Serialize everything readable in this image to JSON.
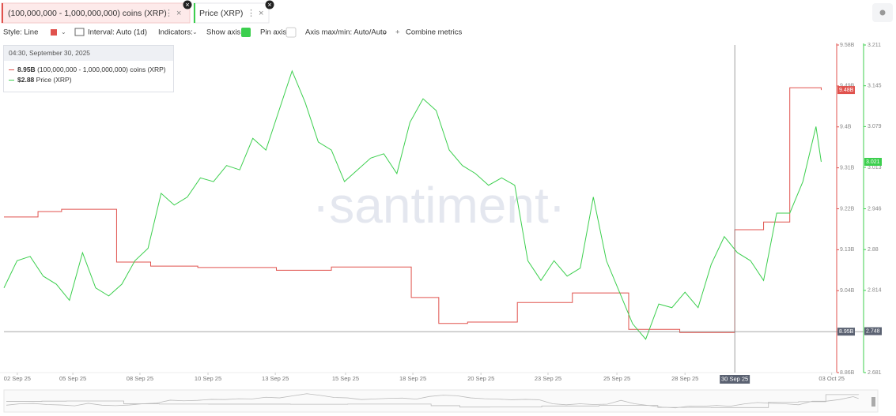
{
  "chart_data": {
    "type": "line",
    "tabs": [
      "(100,000,000 - 1,000,000,000) coins (XRP)",
      "Price (XRP)"
    ],
    "toolbar": {
      "style": "Style: Line",
      "interval": "Interval: Auto (1d)",
      "indicators": "Indicators:",
      "show_axis": "Show axis",
      "pin_axis": "Pin axis",
      "axis_maxmin": "Axis max/min: Auto/Auto",
      "combine": "Combine metrics"
    },
    "watermark": "·santiment·",
    "tooltip": {
      "time": "04:30, September 30, 2025",
      "rows": [
        {
          "value": "8.95B",
          "name": "(100,000,000 - 1,000,000,000) coins (XRP)"
        },
        {
          "value": "$2.88",
          "name": "Price (XRP)"
        }
      ]
    },
    "xlim": [
      1.5,
      33.2
    ],
    "xticks": [
      {
        "value": 2.01,
        "label": "02 Sep 25"
      },
      {
        "value": 4.13,
        "label": "05 Sep 25"
      },
      {
        "value": 6.69,
        "label": "08 Sep 25"
      },
      {
        "value": 9.29,
        "label": "10 Sep 25"
      },
      {
        "value": 11.86,
        "label": "13 Sep 25"
      },
      {
        "value": 14.54,
        "label": "15 Sep 25"
      },
      {
        "value": 17.11,
        "label": "18 Sep 25"
      },
      {
        "value": 19.71,
        "label": "20 Sep 25"
      },
      {
        "value": 22.27,
        "label": "23 Sep 25"
      },
      {
        "value": 24.9,
        "label": "25 Sep 25"
      },
      {
        "value": 27.5,
        "label": "28 Sep 25"
      },
      {
        "value": 33.1,
        "label": "03 Oct 25"
      }
    ],
    "ylim": [
      8.86,
      9.58
    ],
    "yticks": [
      {
        "value": 9.58,
        "label": "9.58B"
      },
      {
        "value": 9.49,
        "label": "9.49B"
      },
      {
        "value": 9.4,
        "label": "9.4B"
      },
      {
        "value": 9.31,
        "label": "9.31B"
      },
      {
        "value": 9.22,
        "label": "9.22B"
      },
      {
        "value": 9.13,
        "label": "9.13B"
      },
      {
        "value": 9.04,
        "label": "9.04B"
      },
      {
        "value": 8.86,
        "label": "8.86B"
      }
    ],
    "y2lim": [
      2.681,
      3.211
    ],
    "y2ticks": [
      3.211,
      3.145,
      3.079,
      3.013,
      2.946,
      2.88,
      2.814,
      2.681
    ],
    "grid": false,
    "crosshair": {
      "x": {
        "value": 29.4,
        "label": "30 Sep 25"
      },
      "y": {
        "value": 8.95,
        "label": "8.95B"
      },
      "y2": 2.748
    },
    "series": [
      {
        "name": "(100,000,000 - 1,000,000,000) coins (XRP)",
        "color": "#e0524d",
        "axis": "y",
        "step": true,
        "last_label": "9.48B",
        "x": [
          1.5,
          2.8,
          3.7,
          5.8,
          7.1,
          8.9,
          11.9,
          14.0,
          17.05,
          18.1,
          19.2,
          21.1,
          23.2,
          25.35,
          27.3,
          29.4,
          30.5,
          31.5,
          32.7
        ],
        "values": [
          9.202,
          9.214,
          9.219,
          9.103,
          9.094,
          9.091,
          9.085,
          9.092,
          9.025,
          8.968,
          8.971,
          9.014,
          9.035,
          8.955,
          8.948,
          9.174,
          9.191,
          9.486,
          9.481
        ]
      },
      {
        "name": "Price (XRP)",
        "color": "#3ccf4e",
        "axis": "y2",
        "step": false,
        "last_label": "3.021",
        "x": [
          1.5,
          2.0,
          2.5,
          3.0,
          3.5,
          4.0,
          4.5,
          5.0,
          5.5,
          6.0,
          6.5,
          7.0,
          7.5,
          8.0,
          8.5,
          9.0,
          9.5,
          10.0,
          10.5,
          11.0,
          11.5,
          12.0,
          12.5,
          13.0,
          13.5,
          14.0,
          14.5,
          15.0,
          15.5,
          16.0,
          16.5,
          17.0,
          17.5,
          18.0,
          18.5,
          19.0,
          19.5,
          20.0,
          20.5,
          21.0,
          21.5,
          22.0,
          22.5,
          23.0,
          23.5,
          24.0,
          24.5,
          25.0,
          25.5,
          26.0,
          26.5,
          27.0,
          27.5,
          28.0,
          28.5,
          29.0,
          29.5,
          30.0,
          30.5,
          31.0,
          31.5,
          32.0,
          32.5,
          32.7
        ],
        "values": [
          2.818,
          2.862,
          2.869,
          2.837,
          2.824,
          2.798,
          2.875,
          2.818,
          2.805,
          2.824,
          2.862,
          2.882,
          2.971,
          2.952,
          2.965,
          2.996,
          2.99,
          3.016,
          3.009,
          3.06,
          3.041,
          3.105,
          3.169,
          3.118,
          3.054,
          3.041,
          2.99,
          3.009,
          3.028,
          3.035,
          3.003,
          3.086,
          3.124,
          3.105,
          3.041,
          3.016,
          3.003,
          2.984,
          2.996,
          2.984,
          2.862,
          2.83,
          2.862,
          2.837,
          2.85,
          2.965,
          2.862,
          2.811,
          2.76,
          2.735,
          2.792,
          2.786,
          2.811,
          2.786,
          2.856,
          2.901,
          2.875,
          2.862,
          2.83,
          2.939,
          2.939,
          2.99,
          3.079,
          3.022
        ]
      }
    ]
  }
}
